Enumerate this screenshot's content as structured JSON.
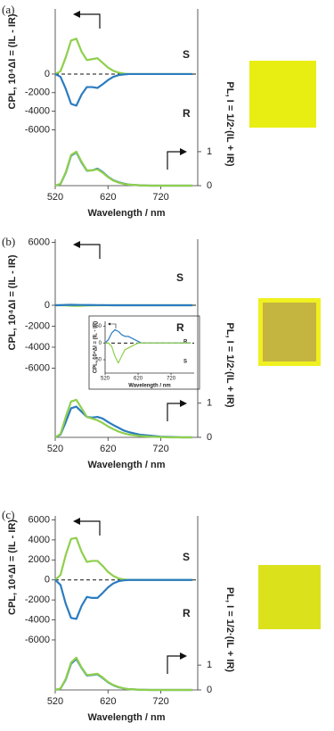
{
  "chart_data": [
    {
      "type": "line",
      "panel": "(a)",
      "ylabel": "CPL, 10⁴ΔI = (IL - IR)",
      "y2label": "PL, I = 1/2·(IL + IR)",
      "xlabel": "Wavelength / nm",
      "x": [
        520,
        530,
        540,
        550,
        560,
        570,
        580,
        590,
        600,
        610,
        620,
        630,
        640,
        650,
        660,
        680,
        700,
        720,
        740,
        760,
        780
      ],
      "xlim": [
        520,
        790
      ],
      "xticks": [
        520,
        620,
        720
      ],
      "ylim": [
        -12000,
        7000
      ],
      "yticks": [
        0,
        -2000,
        -4000,
        -6000
      ],
      "y2lim": [
        0,
        5.2
      ],
      "y2ticks": [
        1,
        0
      ],
      "series": [
        {
          "name": "S",
          "color": "#8fcf4c",
          "values": [
            0,
            300,
            1800,
            3600,
            3800,
            2400,
            1500,
            1600,
            1700,
            1200,
            700,
            350,
            150,
            50,
            0,
            0,
            0,
            0,
            0,
            0,
            0
          ]
        },
        {
          "name": "R",
          "color": "#2b7cc0",
          "values": [
            0,
            -300,
            -1600,
            -3200,
            -3400,
            -2200,
            -1400,
            -1400,
            -1500,
            -1100,
            -650,
            -300,
            -120,
            -40,
            0,
            0,
            0,
            0,
            0,
            0,
            0
          ]
        },
        {
          "color": "#2b7cc0",
          "axis": "y2",
          "values": [
            0,
            0.05,
            0.38,
            0.88,
            0.98,
            0.68,
            0.44,
            0.45,
            0.5,
            0.4,
            0.26,
            0.16,
            0.1,
            0.06,
            0.03,
            0.01,
            0,
            0,
            0,
            0,
            0
          ]
        },
        {
          "color": "#8fcf4c",
          "axis": "y2",
          "values": [
            0,
            0.05,
            0.4,
            0.9,
            1.0,
            0.7,
            0.45,
            0.45,
            0.48,
            0.38,
            0.25,
            0.15,
            0.09,
            0.05,
            0.03,
            0.01,
            0,
            0,
            0,
            0,
            0
          ]
        }
      ]
    },
    {
      "type": "line",
      "panel": "(b)",
      "ylabel": "CPL, 10⁴ΔI = (IL - IR)",
      "y2label": "PL, I = 1/2·(IL + IR)",
      "xlabel": "Wavelength / nm",
      "x": [
        520,
        530,
        540,
        550,
        560,
        570,
        580,
        590,
        600,
        610,
        620,
        630,
        640,
        650,
        660,
        680,
        700,
        720,
        740,
        760,
        780
      ],
      "xlim": [
        520,
        790
      ],
      "xticks": [
        520,
        620,
        720
      ],
      "ylim": [
        -12600,
        6300
      ],
      "yticks": [
        6000,
        0,
        -2000,
        -4000,
        -6000
      ],
      "y2lim": [
        0,
        5.8
      ],
      "y2ticks": [
        1,
        0
      ],
      "series": [
        {
          "name": "S",
          "color": "#8fcf4c",
          "values": [
            0,
            0,
            -10,
            -40,
            -60,
            -40,
            -20,
            -15,
            -10,
            -5,
            0,
            0,
            0,
            0,
            0,
            0,
            0,
            0,
            0,
            0,
            0
          ]
        },
        {
          "name": "R",
          "color": "#2b7cc0",
          "values": [
            0,
            10,
            30,
            40,
            35,
            25,
            20,
            20,
            15,
            10,
            5,
            0,
            0,
            0,
            0,
            0,
            0,
            0,
            0,
            0,
            0
          ]
        },
        {
          "color": "#2b7cc0",
          "axis": "y2",
          "values": [
            0,
            0.08,
            0.45,
            0.85,
            0.9,
            0.75,
            0.6,
            0.58,
            0.6,
            0.55,
            0.45,
            0.36,
            0.28,
            0.2,
            0.15,
            0.08,
            0.05,
            0.02,
            0.01,
            0,
            0
          ]
        },
        {
          "color": "#8fcf4c",
          "axis": "y2",
          "values": [
            0,
            0.1,
            0.6,
            1.05,
            1.1,
            0.85,
            0.6,
            0.55,
            0.5,
            0.42,
            0.32,
            0.24,
            0.17,
            0.12,
            0.08,
            0.04,
            0.02,
            0.01,
            0,
            0,
            0
          ]
        }
      ]
    },
    {
      "type": "line",
      "ylabel": "CPL, 10⁴ΔI = (IL - IR)",
      "xlabel": "Wavelength / nm",
      "x": [
        520,
        530,
        540,
        550,
        560,
        570,
        580,
        590,
        600,
        610,
        620,
        630,
        640,
        650,
        660,
        680,
        700,
        720,
        740,
        760,
        780
      ],
      "xlim": [
        520,
        790
      ],
      "xticks": [
        520,
        620,
        720
      ],
      "ylim": [
        -90,
        65
      ],
      "yticks": [
        50,
        0,
        -50
      ],
      "series": [
        {
          "name": "R",
          "color": "#2b7cc0",
          "values": [
            0,
            10,
            30,
            40,
            35,
            25,
            20,
            20,
            15,
            10,
            5,
            0,
            0,
            0,
            0,
            0,
            0,
            0,
            0,
            0,
            0
          ]
        },
        {
          "name": "S",
          "color": "#8fcf4c",
          "values": [
            0,
            0,
            -10,
            -40,
            -60,
            -40,
            -20,
            -15,
            -10,
            -5,
            0,
            0,
            0,
            0,
            0,
            0,
            0,
            0,
            0,
            0,
            0
          ]
        }
      ]
    },
    {
      "type": "line",
      "panel": "(c)",
      "ylabel": "CPL, 10⁴ΔI = (IL - IR)",
      "y2label": "PL, I = 1/2·(IL + IR)",
      "xlabel": "Wavelength / nm",
      "x": [
        520,
        530,
        540,
        550,
        560,
        570,
        580,
        590,
        600,
        610,
        620,
        630,
        640,
        650,
        660,
        680,
        700,
        720,
        740,
        760,
        780
      ],
      "xlim": [
        520,
        790
      ],
      "xticks": [
        520,
        620,
        720
      ],
      "ylim": [
        -11000,
        6400
      ],
      "yticks": [
        6000,
        4000,
        2000,
        0,
        -2000,
        -4000,
        -6000
      ],
      "y2lim": [
        0,
        7
      ],
      "y2ticks": [
        1,
        0
      ],
      "series": [
        {
          "name": "S",
          "color": "#8fcf4c",
          "values": [
            0,
            500,
            2500,
            4100,
            4200,
            2800,
            1800,
            1900,
            1900,
            1400,
            800,
            400,
            150,
            50,
            0,
            0,
            0,
            0,
            0,
            0,
            0
          ]
        },
        {
          "name": "R",
          "color": "#2b7cc0",
          "values": [
            0,
            -500,
            -2400,
            -3800,
            -3900,
            -2600,
            -1700,
            -1800,
            -1800,
            -1300,
            -750,
            -350,
            -130,
            -40,
            0,
            0,
            0,
            0,
            0,
            0,
            0
          ]
        },
        {
          "color": "#2b7cc0",
          "axis": "y2",
          "values": [
            0,
            0.05,
            0.42,
            1.05,
            1.25,
            0.88,
            0.58,
            0.6,
            0.63,
            0.48,
            0.31,
            0.19,
            0.11,
            0.06,
            0.03,
            0.01,
            0,
            0,
            0,
            0,
            0
          ]
        },
        {
          "color": "#8fcf4c",
          "axis": "y2",
          "values": [
            0,
            0.05,
            0.45,
            1.1,
            1.3,
            0.9,
            0.6,
            0.62,
            0.65,
            0.5,
            0.32,
            0.2,
            0.12,
            0.06,
            0.03,
            0.01,
            0,
            0,
            0,
            0,
            0
          ]
        }
      ]
    }
  ]
}
